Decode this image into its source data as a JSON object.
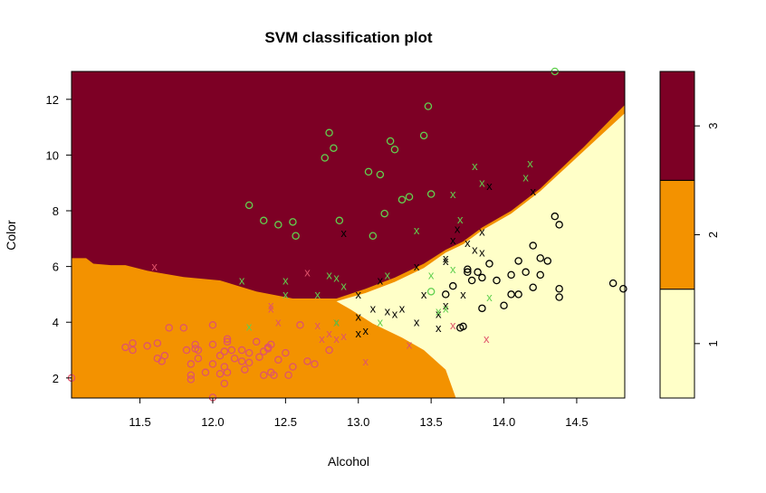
{
  "chart_data": {
    "type": "scatter",
    "title": "SVM classification plot",
    "xlabel": "Alcohol",
    "ylabel": "Color",
    "xlim": [
      11.03,
      14.83
    ],
    "ylim": [
      1.28,
      13.0
    ],
    "x_ticks": [
      11.5,
      12.0,
      12.5,
      13.0,
      13.5,
      14.0,
      14.5
    ],
    "x_tick_labels": [
      "11.5",
      "12.0",
      "12.5",
      "13.0",
      "13.5",
      "14.0",
      "14.5"
    ],
    "y_ticks": [
      2,
      4,
      6,
      8,
      10,
      12
    ],
    "y_tick_labels": [
      "2",
      "4",
      "6",
      "8",
      "10",
      "12"
    ],
    "legend": {
      "placement": "right",
      "levels": [
        {
          "label": "1",
          "color": "#FFFFC8"
        },
        {
          "label": "2",
          "color": "#F39200"
        },
        {
          "label": "3",
          "color": "#7D0025"
        }
      ]
    },
    "regions": {
      "class3_lower_boundary": [
        [
          11.03,
          6.3
        ],
        [
          11.13,
          6.3
        ],
        [
          11.18,
          6.1
        ],
        [
          11.3,
          6.05
        ],
        [
          11.4,
          6.05
        ],
        [
          11.55,
          5.85
        ],
        [
          11.6,
          5.8
        ],
        [
          11.8,
          5.62
        ],
        [
          12.05,
          5.5
        ],
        [
          12.3,
          5.1
        ],
        [
          12.55,
          4.85
        ],
        [
          12.85,
          4.85
        ],
        [
          13.05,
          5.2
        ],
        [
          13.25,
          5.6
        ],
        [
          13.45,
          6.1
        ],
        [
          13.6,
          6.6
        ],
        [
          13.72,
          6.9
        ],
        [
          13.85,
          7.4
        ],
        [
          14.05,
          8.0
        ],
        [
          14.25,
          8.8
        ],
        [
          14.55,
          10.3
        ],
        [
          14.83,
          11.8
        ]
      ],
      "class1_upper_boundary": [
        [
          12.85,
          4.75
        ],
        [
          13.05,
          5.05
        ],
        [
          13.25,
          5.45
        ],
        [
          13.45,
          5.95
        ],
        [
          13.6,
          6.5
        ],
        [
          13.72,
          6.8
        ],
        [
          13.85,
          7.3
        ],
        [
          14.05,
          7.9
        ],
        [
          14.25,
          8.7
        ],
        [
          14.55,
          10.15
        ],
        [
          14.83,
          11.5
        ]
      ],
      "class1_lower_boundary": [
        [
          12.85,
          4.75
        ],
        [
          12.95,
          4.45
        ],
        [
          13.1,
          3.95
        ],
        [
          13.3,
          3.45
        ],
        [
          13.45,
          3.0
        ],
        [
          13.6,
          2.3
        ],
        [
          13.67,
          1.28
        ]
      ],
      "class2_visible_edge": [
        [
          13.67,
          1.28
        ],
        [
          14.83,
          1.28
        ]
      ],
      "class2_dark_edge": [
        [
          14.83,
          12.0
        ]
      ]
    },
    "series": [
      {
        "label": "1",
        "color": "#000000",
        "markers": [
          {
            "symbol": "x",
            "points": [
              [
                12.9,
                7.2
              ],
              [
                12.85,
                4.0
              ],
              [
                13.0,
                4.2
              ],
              [
                13.0,
                3.6
              ],
              [
                13.05,
                3.7
              ],
              [
                13.0,
                5.0
              ],
              [
                13.1,
                4.5
              ],
              [
                13.2,
                4.4
              ],
              [
                13.25,
                4.3
              ],
              [
                13.3,
                4.5
              ],
              [
                13.4,
                6.0
              ],
              [
                13.4,
                4.0
              ],
              [
                13.45,
                5.0
              ],
              [
                13.55,
                4.3
              ],
              [
                13.55,
                3.8
              ],
              [
                13.6,
                4.6
              ],
              [
                13.6,
                6.2
              ],
              [
                13.6,
                6.3
              ],
              [
                13.65,
                6.95
              ],
              [
                13.68,
                7.35
              ],
              [
                13.72,
                5.0
              ],
              [
                13.75,
                6.85
              ],
              [
                13.8,
                6.6
              ],
              [
                13.85,
                6.5
              ],
              [
                13.85,
                7.25
              ],
              [
                13.9,
                8.9
              ],
              [
                14.2,
                8.7
              ],
              [
                13.15,
                5.5
              ]
            ]
          },
          {
            "symbol": "o",
            "points": [
              [
                13.6,
                5.0
              ],
              [
                13.65,
                5.3
              ],
              [
                13.7,
                3.8
              ],
              [
                13.72,
                3.85
              ],
              [
                13.75,
                5.8
              ],
              [
                13.75,
                5.9
              ],
              [
                13.78,
                5.5
              ],
              [
                13.82,
                5.8
              ],
              [
                13.85,
                5.6
              ],
              [
                13.9,
                6.1
              ],
              [
                13.85,
                4.5
              ],
              [
                13.95,
                5.5
              ],
              [
                14.0,
                4.6
              ],
              [
                14.05,
                5.7
              ],
              [
                14.05,
                5.0
              ],
              [
                14.1,
                6.2
              ],
              [
                14.1,
                5.0
              ],
              [
                14.15,
                5.8
              ],
              [
                14.2,
                6.75
              ],
              [
                14.2,
                5.25
              ],
              [
                14.25,
                5.7
              ],
              [
                14.25,
                6.3
              ],
              [
                14.3,
                6.2
              ],
              [
                14.35,
                7.8
              ],
              [
                14.38,
                7.5
              ],
              [
                14.38,
                5.2
              ],
              [
                14.38,
                4.9
              ],
              [
                14.75,
                5.4
              ],
              [
                14.82,
                5.2
              ]
            ]
          }
        ]
      },
      {
        "label": "2",
        "color": "#DF536B",
        "markers": [
          {
            "symbol": "x",
            "points": [
              [
                11.6,
                6.0
              ],
              [
                12.4,
                4.6
              ],
              [
                12.4,
                4.5
              ],
              [
                12.45,
                4.0
              ],
              [
                12.65,
                5.8
              ],
              [
                12.72,
                3.9
              ],
              [
                12.75,
                3.4
              ],
              [
                12.8,
                3.6
              ],
              [
                12.85,
                3.4
              ],
              [
                12.9,
                3.5
              ],
              [
                13.05,
                2.6
              ],
              [
                13.35,
                3.2
              ],
              [
                13.65,
                3.9
              ],
              [
                13.88,
                3.4
              ]
            ]
          },
          {
            "symbol": "o",
            "points": [
              [
                11.03,
                2.0
              ],
              [
                11.4,
                3.1
              ],
              [
                11.45,
                3.25
              ],
              [
                11.45,
                3.0
              ],
              [
                11.55,
                3.15
              ],
              [
                11.62,
                2.7
              ],
              [
                11.62,
                3.25
              ],
              [
                11.65,
                2.6
              ],
              [
                11.67,
                2.8
              ],
              [
                11.7,
                3.8
              ],
              [
                11.8,
                3.8
              ],
              [
                11.82,
                3.0
              ],
              [
                11.85,
                2.5
              ],
              [
                11.85,
                2.1
              ],
              [
                11.85,
                1.95
              ],
              [
                11.88,
                3.2
              ],
              [
                11.9,
                2.7
              ],
              [
                11.9,
                3.0
              ],
              [
                11.95,
                2.2
              ],
              [
                12.0,
                1.3
              ],
              [
                12.0,
                2.5
              ],
              [
                12.0,
                3.2
              ],
              [
                12.0,
                3.9
              ],
              [
                12.05,
                2.8
              ],
              [
                12.08,
                2.4
              ],
              [
                12.08,
                2.95
              ],
              [
                12.1,
                3.3
              ],
              [
                12.1,
                2.2
              ],
              [
                12.15,
                2.7
              ],
              [
                12.2,
                2.6
              ],
              [
                12.2,
                3.0
              ],
              [
                12.22,
                2.3
              ],
              [
                12.25,
                2.9
              ],
              [
                12.3,
                3.3
              ],
              [
                12.35,
                2.95
              ],
              [
                12.35,
                2.1
              ],
              [
                12.38,
                3.1
              ],
              [
                12.4,
                2.2
              ],
              [
                12.42,
                2.1
              ],
              [
                12.45,
                2.65
              ],
              [
                12.5,
                2.9
              ],
              [
                12.52,
                2.1
              ],
              [
                12.55,
                2.4
              ],
              [
                12.6,
                3.9
              ],
              [
                12.65,
                2.6
              ],
              [
                12.7,
                2.5
              ],
              [
                12.8,
                3.0
              ],
              [
                12.05,
                2.15
              ],
              [
                12.08,
                1.8
              ],
              [
                12.13,
                3.0
              ],
              [
                12.25,
                2.55
              ],
              [
                12.1,
                3.4
              ],
              [
                12.38,
                3.05
              ],
              [
                12.4,
                3.2
              ],
              [
                12.32,
                2.75
              ],
              [
                11.88,
                3.05
              ]
            ]
          }
        ]
      },
      {
        "label": "3",
        "color": "#61D04F",
        "markers": [
          {
            "symbol": "x",
            "points": [
              [
                12.2,
                5.5
              ],
              [
                12.25,
                3.85
              ],
              [
                12.5,
                5.5
              ],
              [
                12.5,
                5.0
              ],
              [
                12.72,
                5.0
              ],
              [
                12.8,
                5.7
              ],
              [
                12.85,
                5.6
              ],
              [
                12.9,
                5.3
              ],
              [
                12.85,
                4.0
              ],
              [
                13.2,
                5.7
              ],
              [
                13.5,
                5.7
              ],
              [
                13.55,
                4.4
              ],
              [
                13.6,
                4.5
              ],
              [
                13.65,
                8.6
              ],
              [
                13.7,
                7.7
              ],
              [
                13.8,
                9.6
              ],
              [
                13.85,
                9.0
              ],
              [
                13.9,
                4.9
              ],
              [
                14.15,
                9.2
              ],
              [
                14.18,
                9.7
              ],
              [
                13.65,
                5.9
              ],
              [
                13.4,
                7.3
              ],
              [
                13.15,
                4.0
              ]
            ]
          },
          {
            "symbol": "o",
            "points": [
              [
                12.25,
                8.2
              ],
              [
                12.35,
                7.65
              ],
              [
                12.45,
                7.5
              ],
              [
                12.55,
                7.6
              ],
              [
                12.57,
                7.1
              ],
              [
                12.77,
                9.9
              ],
              [
                12.8,
                10.8
              ],
              [
                12.83,
                10.25
              ],
              [
                12.87,
                7.65
              ],
              [
                13.07,
                9.4
              ],
              [
                13.1,
                7.1
              ],
              [
                13.15,
                9.3
              ],
              [
                13.18,
                7.9
              ],
              [
                13.22,
                10.5
              ],
              [
                13.25,
                10.2
              ],
              [
                13.3,
                8.4
              ],
              [
                13.35,
                8.5
              ],
              [
                13.45,
                10.7
              ],
              [
                13.48,
                11.75
              ],
              [
                13.5,
                8.6
              ],
              [
                13.5,
                5.1
              ],
              [
                14.35,
                13.0
              ]
            ]
          }
        ]
      }
    ]
  }
}
